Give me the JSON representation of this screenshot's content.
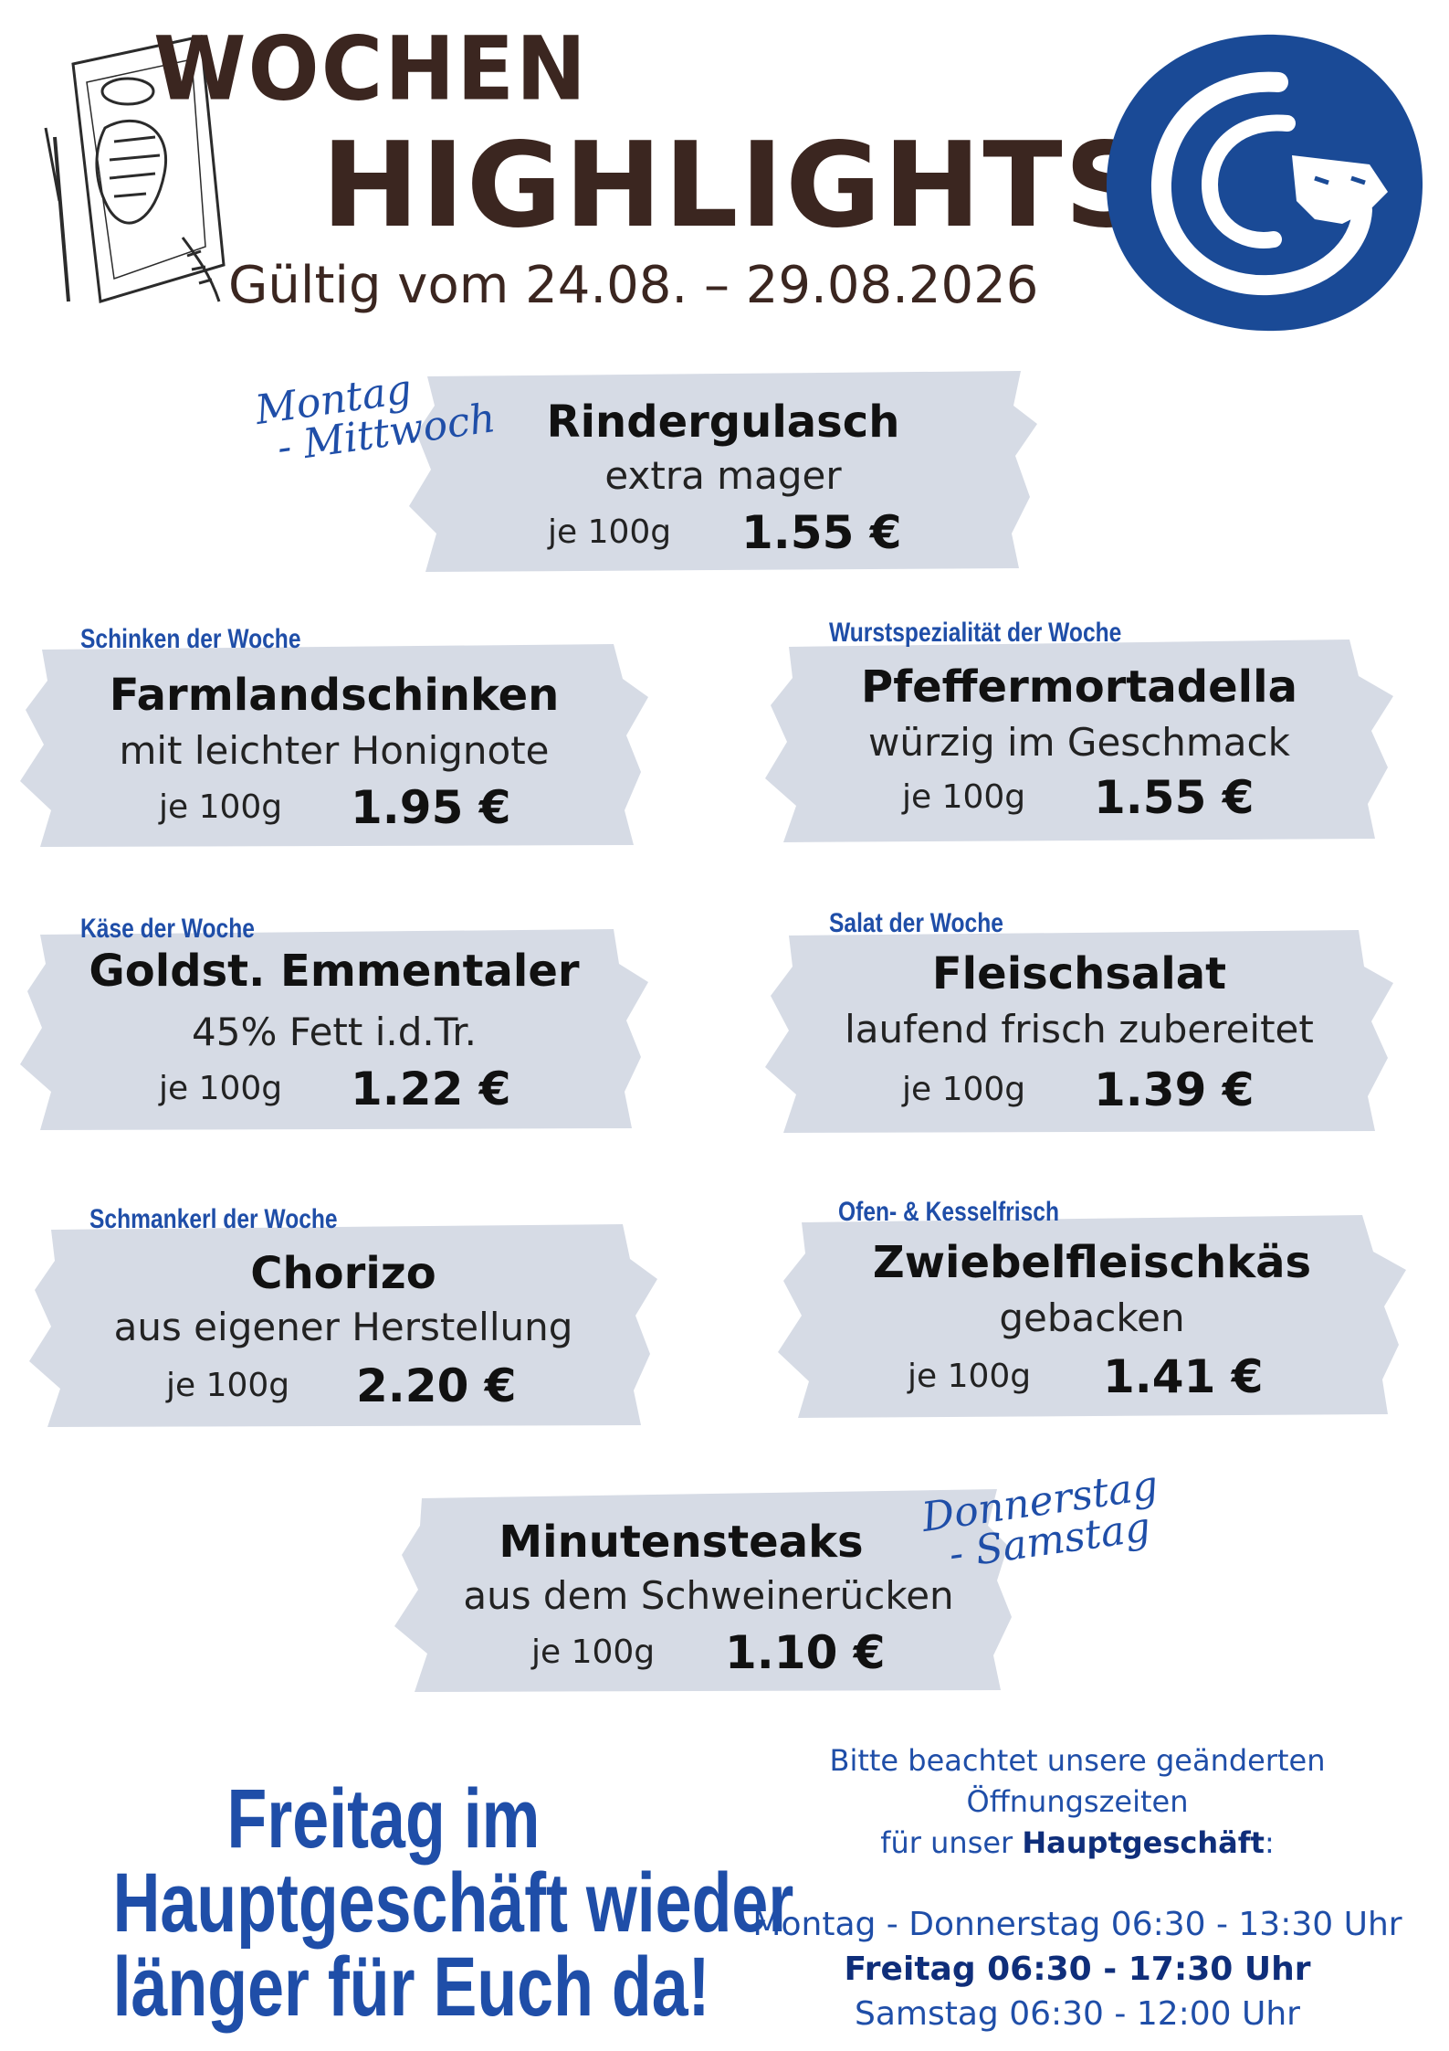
{
  "header": {
    "title_line1": "WOCHEN",
    "title_line2": "HIGHLIGHTS",
    "validity": "Gültig vom 24.08. – 29.08.2026"
  },
  "items": [
    {
      "tag": "Montag – Mittwoch",
      "name": "Rindergulasch",
      "desc": "extra mager",
      "unit": "je 100g",
      "price": "1.55 €"
    },
    {
      "tag": "Schinken der Woche",
      "name": "Farmlandschinken",
      "desc": "mit leichter Honignote",
      "unit": "je 100g",
      "price": "1.95 €"
    },
    {
      "tag": "Wurstspezialität der Woche",
      "name": "Pfeffermortadella",
      "desc": "würzig im Geschmack",
      "unit": "je 100g",
      "price": "1.55 €"
    },
    {
      "tag": "Käse der Woche",
      "name": "Goldst. Emmentaler",
      "desc": "45% Fett i.d.Tr.",
      "unit": "je 100g",
      "price": "1.22 €"
    },
    {
      "tag": "Salat der Woche",
      "name": "Fleischsalat",
      "desc": "laufend frisch zubereitet",
      "unit": "je 100g",
      "price": "1.39 €"
    },
    {
      "tag": "Schmankerl der Woche",
      "name": "Chorizo",
      "desc": "aus eigener Herstellung",
      "unit": "je 100g",
      "price": "2.20 €"
    },
    {
      "tag": "Ofen- & Kesselfrisch",
      "name": "Zwiebelfleischkäs",
      "desc": "gebacken",
      "unit": "je 100g",
      "price": "1.41 €"
    },
    {
      "tag": "Donnerstag – Samstag",
      "name": "Minutensteaks",
      "desc": "aus dem Schweinerücken",
      "unit": "je 100g",
      "price": "1.10 €"
    }
  ],
  "script_tags": {
    "mon_wed_line1": "Montag",
    "mon_wed_line2": "- Mittwoch",
    "thu_sat_line1": "Donnerstag",
    "thu_sat_line2": "- Samstag"
  },
  "promo": {
    "line1": "Freitag im",
    "line2": "Hauptgeschäft wieder",
    "line3": "länger für Euch da!"
  },
  "hours": {
    "note_line1": "Bitte beachtet unsere geänderten",
    "note_line2": "Öffnungszeiten",
    "note_line3_prefix": "für unser ",
    "note_line3_bold": "Hauptgeschäft",
    "note_line3_suffix": ":",
    "mon_thu": "Montag - Donnerstag 06:30 - 13:30 Uhr",
    "fri": "Freitag 06:30 - 17:30 Uhr",
    "sat": "Samstag 06:30 - 12:00 Uhr"
  },
  "colors": {
    "brand_blue": "#1f4ea8",
    "logo_blue": "#1a4a96",
    "tape": "#d6dbe5",
    "title_brown": "#3b2620"
  }
}
